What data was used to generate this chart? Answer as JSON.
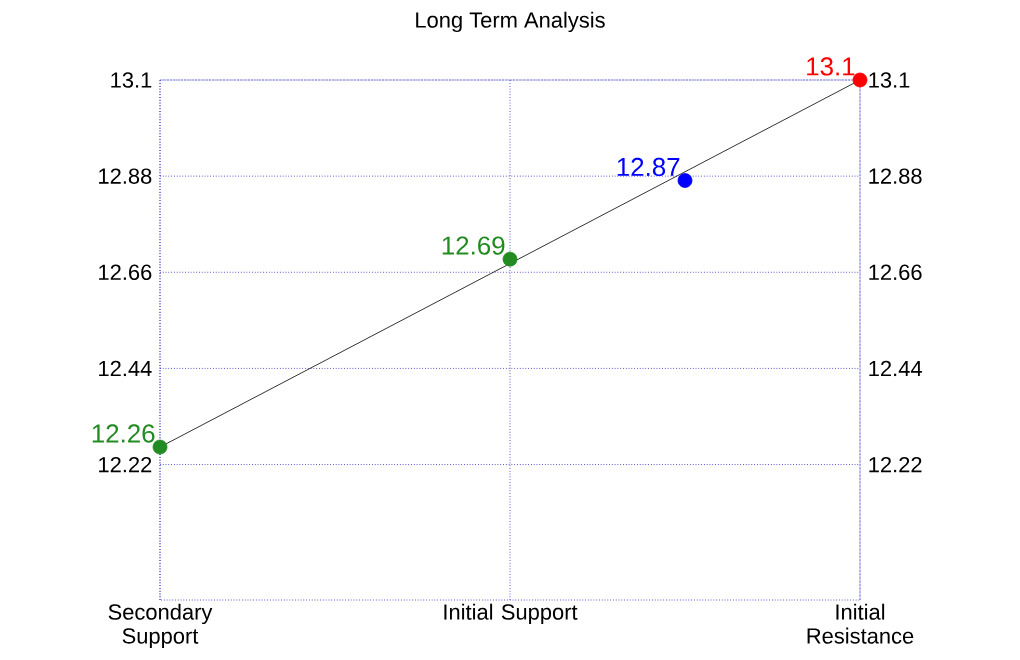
{
  "chart_data": {
    "type": "scatter",
    "title": "Long Term Analysis",
    "grid": true,
    "categories": [
      "Secondary Support",
      null,
      null,
      null,
      "Initial Support",
      null,
      null,
      null,
      "Initial Resistance"
    ],
    "ylim": [
      11.91,
      13.1
    ],
    "yticks": [
      12.22,
      12.44,
      12.66,
      12.88,
      13.1
    ],
    "y2lim": [
      11.91,
      13.1
    ],
    "y2ticks": [
      12.22,
      12.44,
      12.66,
      12.88,
      13.1
    ],
    "series": [
      {
        "type": "line",
        "color": "#000000",
        "marker": "none",
        "values": [
          12.26,
          null,
          null,
          null,
          null,
          null,
          null,
          null,
          13.1
        ]
      },
      {
        "color": "#228b22",
        "marker": "circle",
        "values": [
          12.26,
          null,
          null,
          null,
          12.69,
          null,
          null,
          null,
          null
        ],
        "value_labels": [
          "12.26",
          null,
          null,
          null,
          "12.69",
          null,
          null,
          null,
          null
        ]
      },
      {
        "color": "#0000ff",
        "marker": "circle",
        "values": [
          null,
          null,
          null,
          null,
          null,
          null,
          12.87,
          null,
          null
        ],
        "value_labels": [
          null,
          null,
          null,
          null,
          null,
          null,
          "12.87",
          null,
          null
        ]
      },
      {
        "color": "#ff0000",
        "marker": "circle",
        "values": [
          null,
          null,
          null,
          null,
          null,
          null,
          null,
          null,
          13.1
        ],
        "value_labels": [
          null,
          null,
          null,
          null,
          null,
          null,
          null,
          null,
          "13.1"
        ]
      }
    ]
  }
}
